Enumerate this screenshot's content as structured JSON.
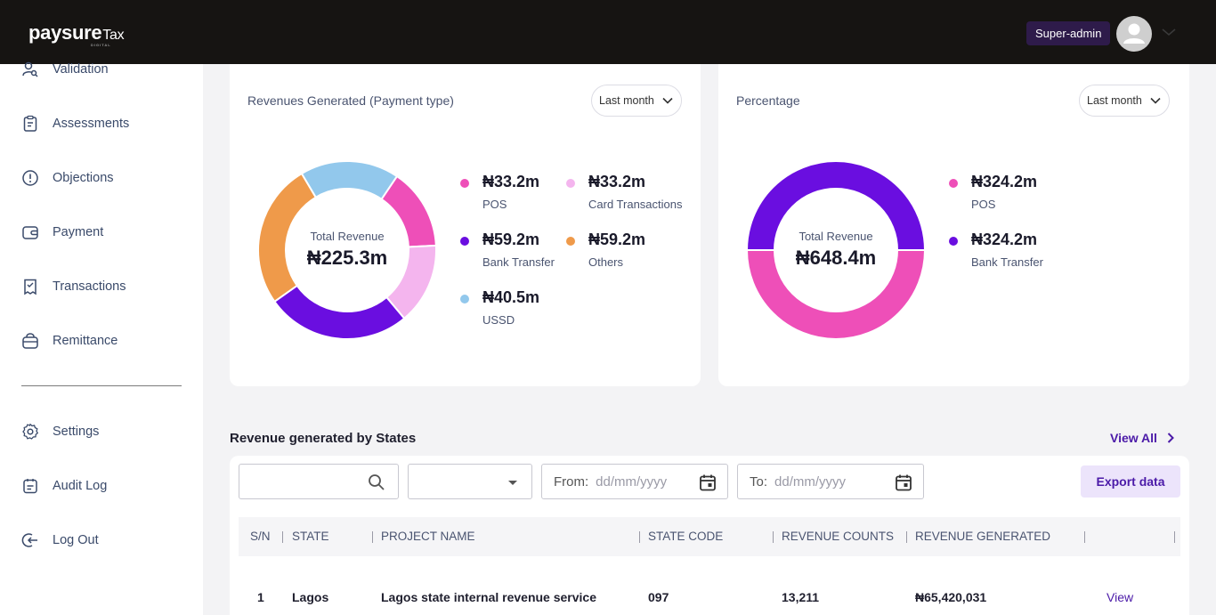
{
  "brand": {
    "name": "paysure",
    "suffix": "Tax",
    "tagline": "DIGITAL"
  },
  "header": {
    "role": "Super-admin"
  },
  "sidebar": {
    "items": [
      {
        "label": "Validation",
        "icon": "user-search-icon"
      },
      {
        "label": "Assessments",
        "icon": "clipboard-icon"
      },
      {
        "label": "Objections",
        "icon": "alert-circle-icon"
      },
      {
        "label": "Payment",
        "icon": "wallet-icon"
      },
      {
        "label": "Transactions",
        "icon": "receipt-icon"
      },
      {
        "label": "Remittance",
        "icon": "bag-icon"
      }
    ],
    "bottom_items": [
      {
        "label": "Settings",
        "icon": "gear-icon"
      },
      {
        "label": "Audit Log",
        "icon": "calendar-list-icon"
      },
      {
        "label": "Log Out",
        "icon": "logout-icon"
      }
    ]
  },
  "revenue_card": {
    "title": "Revenues Generated (Payment type)",
    "period": "Last month",
    "total_label": "Total Revenue",
    "total_value": "₦225.3m",
    "legend": [
      {
        "value": "₦33.2m",
        "name": "POS",
        "color": "#ee4fb8"
      },
      {
        "value": "₦33.2m",
        "name": "Card Transactions",
        "color": "#f4b5ee"
      },
      {
        "value": "₦59.2m",
        "name": "Bank Transfer",
        "color": "#6a0ee0"
      },
      {
        "value": "₦59.2m",
        "name": "Others",
        "color": "#ef9a4a"
      },
      {
        "value": "₦40.5m",
        "name": "USSD",
        "color": "#92c8ec"
      }
    ]
  },
  "percentage_card": {
    "title": "Percentage",
    "period": "Last month",
    "total_label": "Total Revenue",
    "total_value": "₦648.4m",
    "legend": [
      {
        "value": "₦324.2m",
        "name": "POS",
        "color": "#ee4fb8"
      },
      {
        "value": "₦324.2m",
        "name": "Bank Transfer",
        "color": "#6a0ee0"
      }
    ]
  },
  "chart_data": [
    {
      "type": "pie",
      "categories": [
        "POS",
        "Card Transactions",
        "Bank Transfer",
        "Others",
        "USSD"
      ],
      "values": [
        33.2,
        33.2,
        59.2,
        59.2,
        40.5
      ],
      "colors": [
        "#ee4fb8",
        "#f4b5ee",
        "#6a0ee0",
        "#ef9a4a",
        "#92c8ec"
      ],
      "donut": true
    },
    {
      "type": "pie",
      "categories": [
        "POS",
        "Bank Transfer"
      ],
      "values": [
        324.2,
        324.2
      ],
      "colors": [
        "#ee4fb8",
        "#6a0ee0"
      ],
      "donut": true
    }
  ],
  "states_section": {
    "title": "Revenue generated by States",
    "view_all": "View All",
    "filters": {
      "from_label": "From:",
      "to_label": "To:",
      "date_placeholder": "dd/mm/yyyy",
      "export_label": "Export data"
    },
    "columns": [
      "S/N",
      "STATE",
      "PROJECT NAME",
      "STATE CODE",
      "REVENUE COUNTS",
      "REVENUE GENERATED"
    ],
    "rows": [
      {
        "sn": "1",
        "state": "Lagos",
        "project": "Lagos state internal revenue service",
        "code": "097",
        "counts": "13,211",
        "revenue": "₦65,420,031",
        "action": "View"
      }
    ]
  }
}
